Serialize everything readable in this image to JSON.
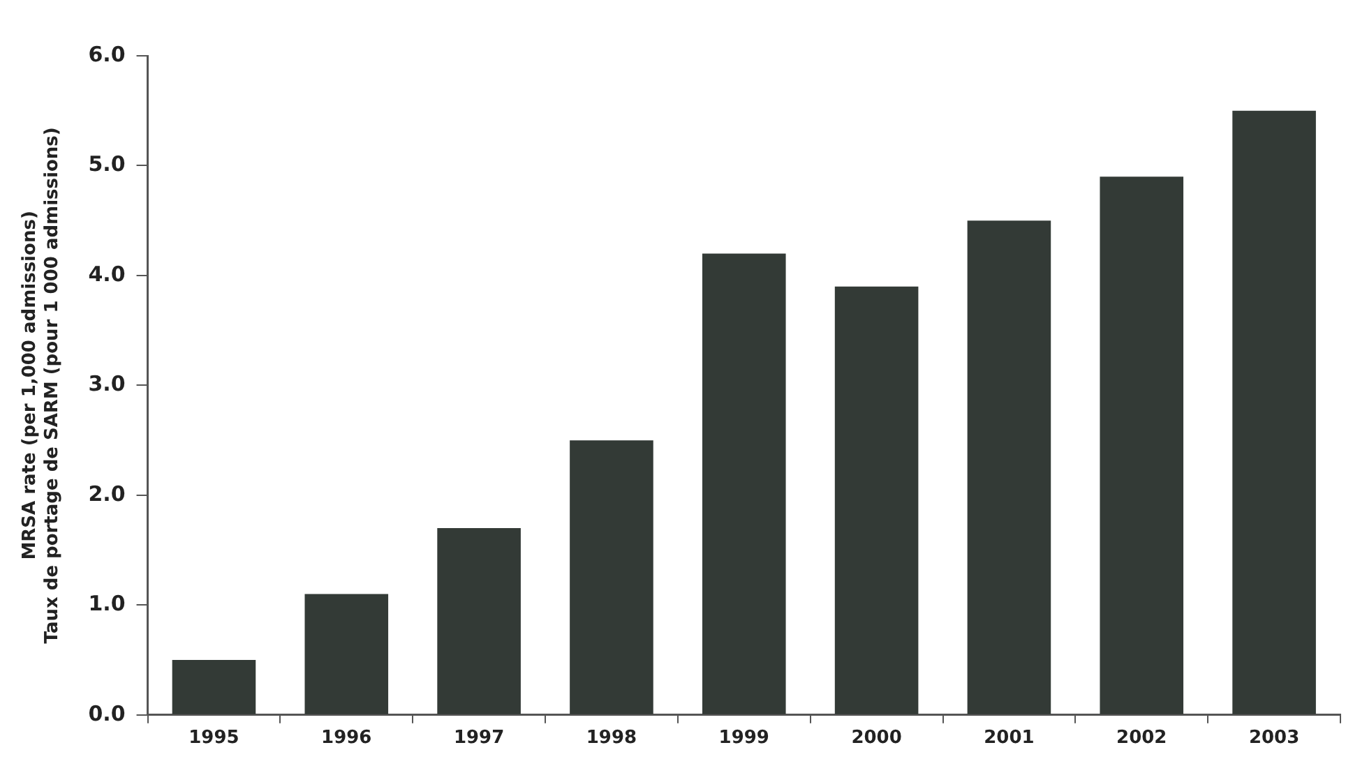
{
  "chart_data": {
    "type": "bar",
    "ylabel": "MRSA rate (per 1,000 admissions)\nTaux de portage de SARM (pour 1 000 admissions)",
    "categories": [
      "1995",
      "1996",
      "1997",
      "1998",
      "1999",
      "2000",
      "2001",
      "2002",
      "2003"
    ],
    "values": [
      0.5,
      1.1,
      1.7,
      2.5,
      4.2,
      3.9,
      4.5,
      4.9,
      5.5
    ],
    "color": "#333a36",
    "ylim": [
      0,
      6
    ],
    "yticks": [
      {
        "value": 0,
        "label": "0.0"
      },
      {
        "value": 1,
        "label": "1.0"
      },
      {
        "value": 2,
        "label": "2.0"
      },
      {
        "value": 3,
        "label": "3.0"
      },
      {
        "value": 4,
        "label": "4.0"
      },
      {
        "value": 5,
        "label": "5.0"
      },
      {
        "value": 6,
        "label": "6.0"
      }
    ],
    "grid": false,
    "legend": false
  }
}
